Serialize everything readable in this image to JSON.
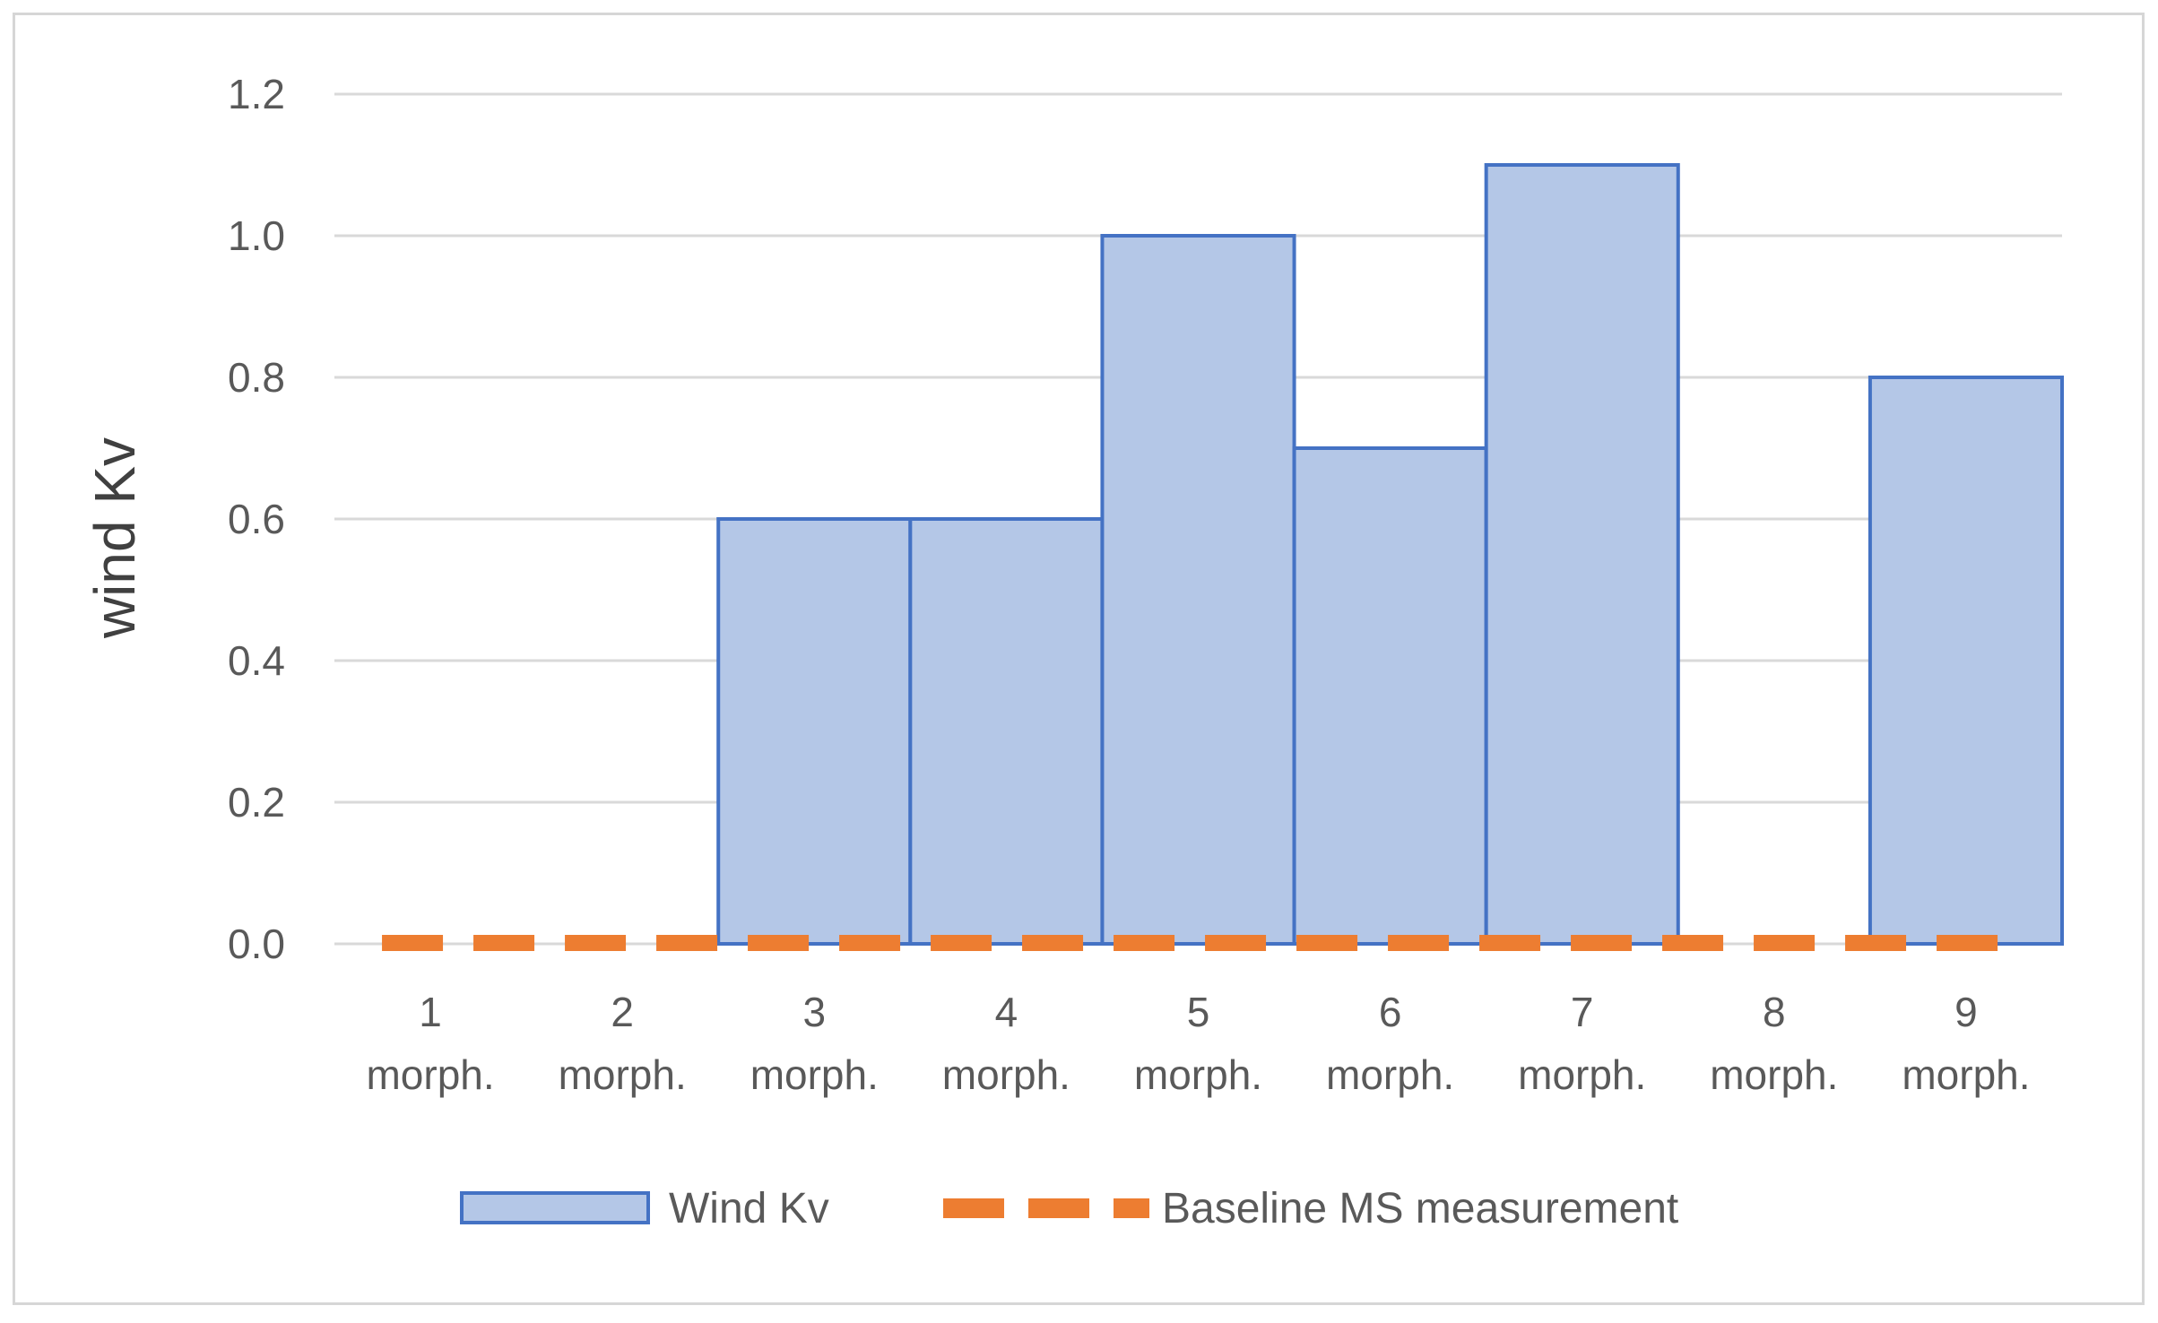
{
  "chart_data": {
    "type": "bar",
    "categories": [
      [
        "1",
        "morph."
      ],
      [
        "2",
        "morph."
      ],
      [
        "3",
        "morph."
      ],
      [
        "4",
        "morph."
      ],
      [
        "5",
        "morph."
      ],
      [
        "6",
        "morph."
      ],
      [
        "7",
        "morph."
      ],
      [
        "8",
        "morph."
      ],
      [
        "9",
        "morph."
      ]
    ],
    "series": [
      {
        "name": "Wind Kv",
        "type": "bar",
        "values": [
          0,
          0,
          0.6,
          0.6,
          1.0,
          0.7,
          1.1,
          0,
          0.8
        ],
        "fill": "#b4c7e7",
        "stroke": "#4472c4"
      },
      {
        "name": "Baseline MS measurement",
        "type": "line",
        "style": "dashed",
        "values": [
          0,
          0,
          0,
          0,
          0,
          0,
          0,
          0,
          0
        ],
        "color": "#ed7d31"
      }
    ],
    "title": "",
    "xlabel": "",
    "ylabel": "wind Kv",
    "ylim": [
      0,
      1.2
    ],
    "yticks": [
      "0.0",
      "0.2",
      "0.4",
      "0.6",
      "0.8",
      "1.0",
      "1.2"
    ],
    "grid": true,
    "legend_position": "bottom"
  }
}
